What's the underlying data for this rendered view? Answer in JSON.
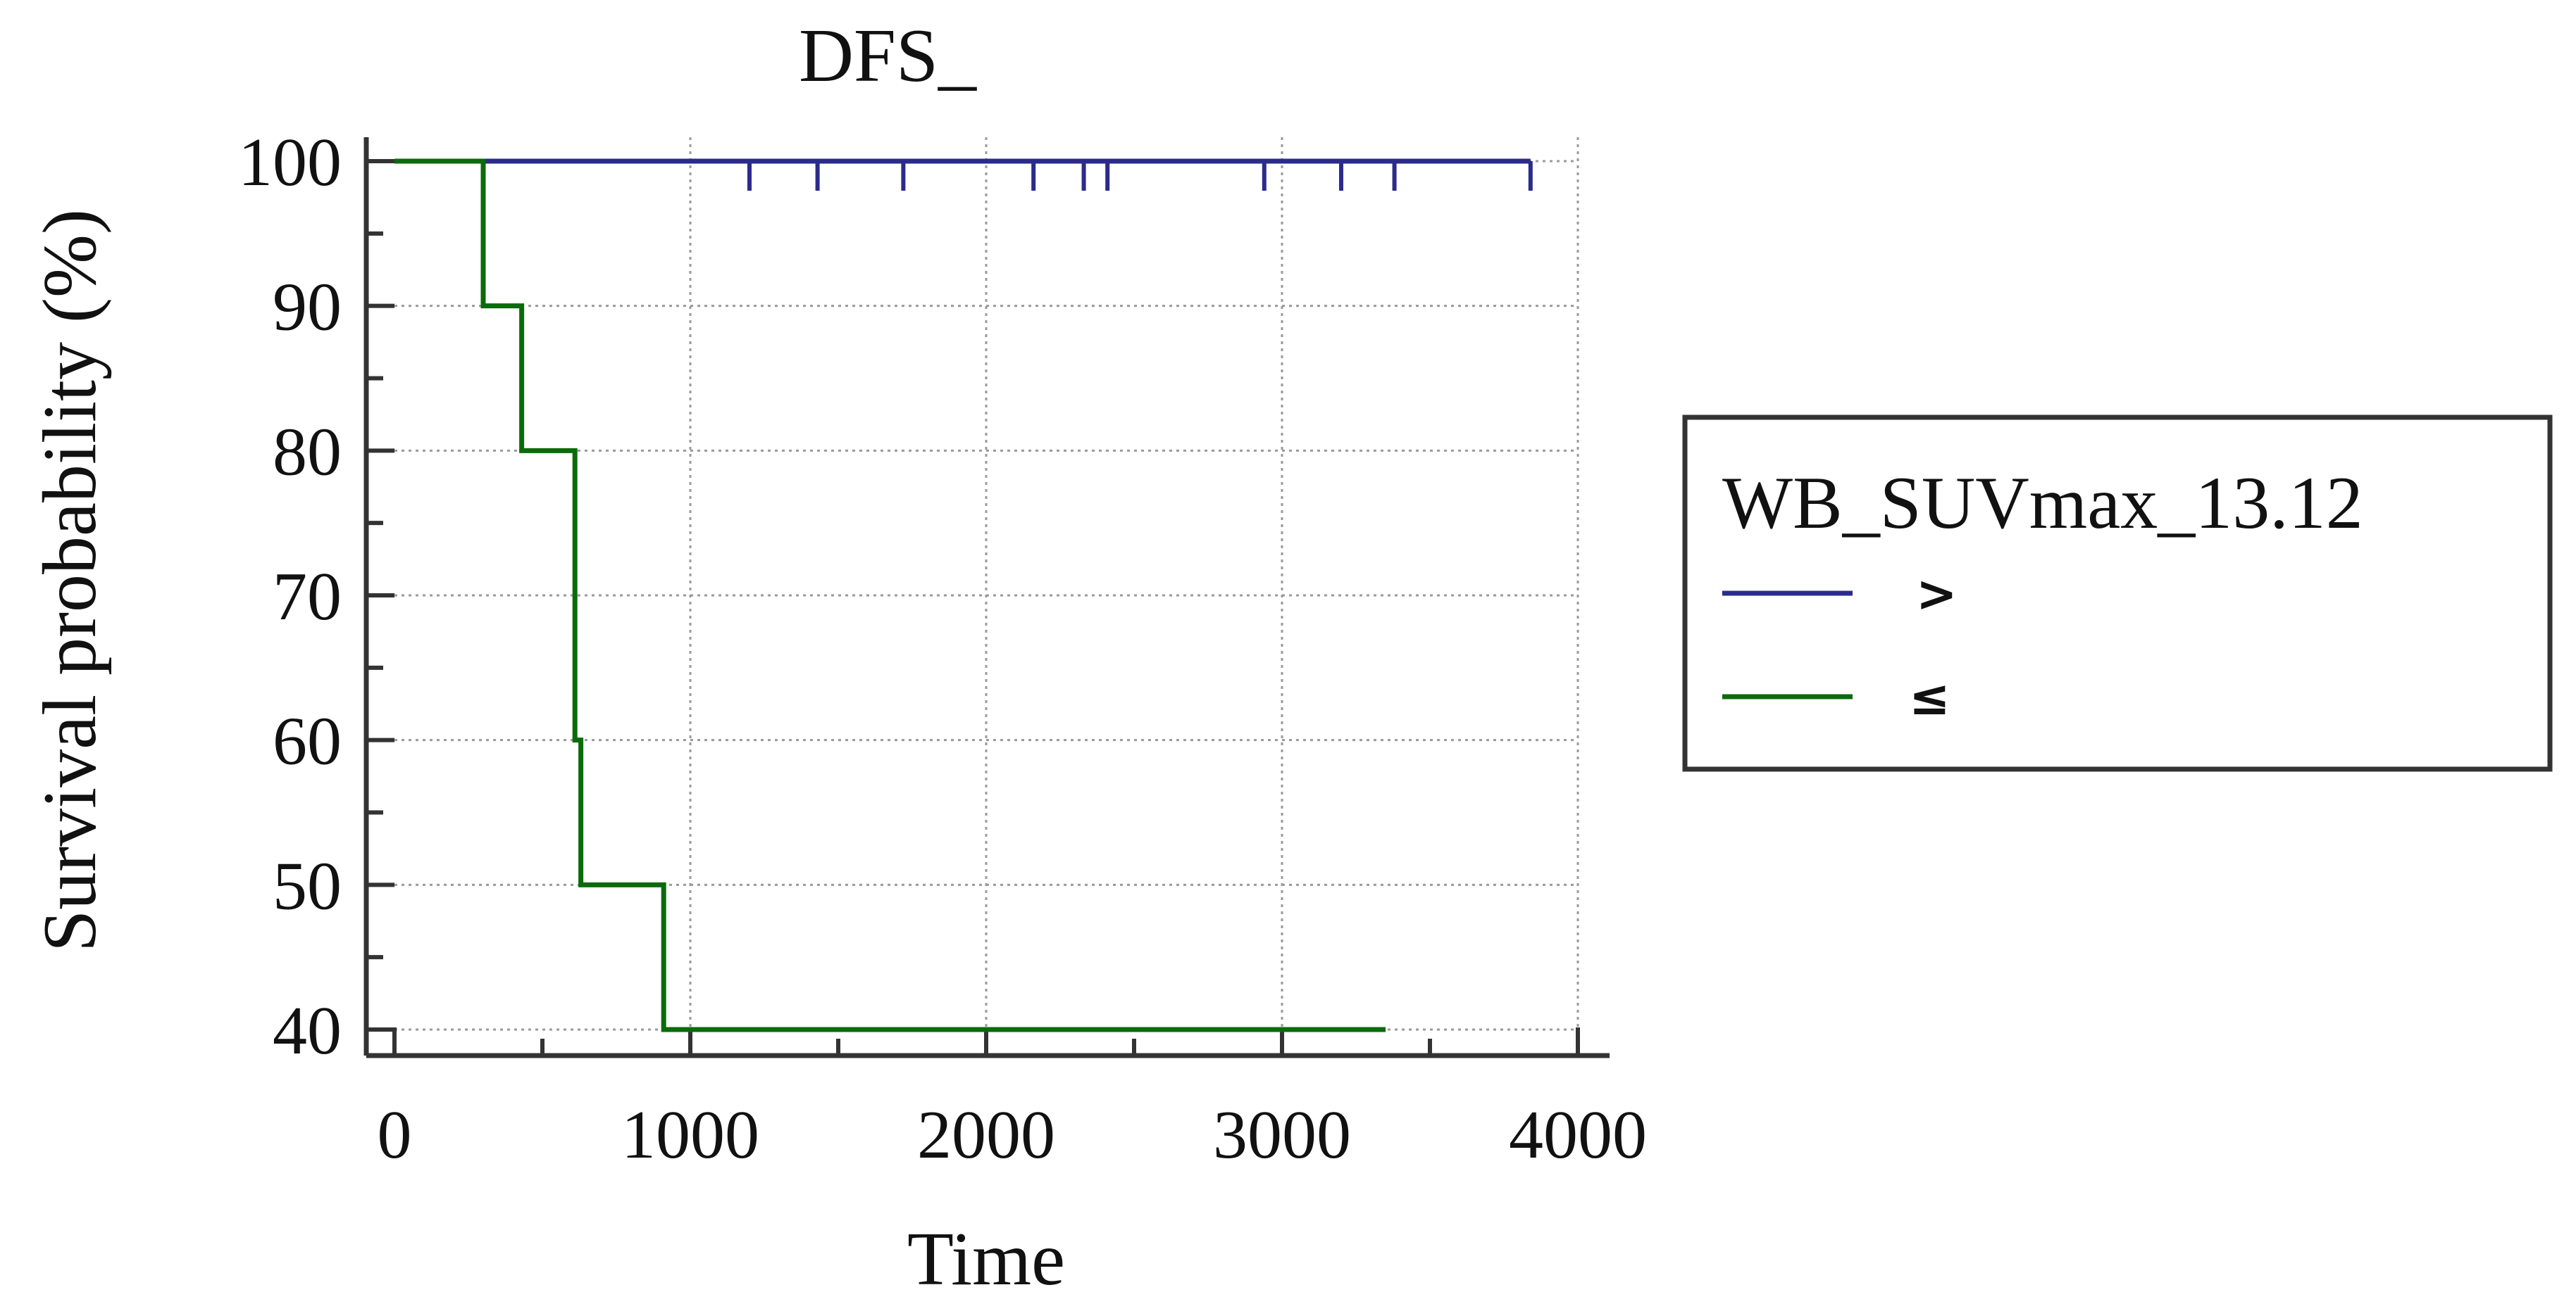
{
  "chart_data": {
    "type": "line",
    "subtype": "kaplan-meier",
    "title": "DFS_",
    "xlabel": "Time",
    "ylabel": "Survival probability (%)",
    "xlim": [
      0,
      4000
    ],
    "ylim": [
      40,
      100
    ],
    "xticks": [
      "0",
      "1000",
      "2000",
      "3000",
      "4000"
    ],
    "yticks": [
      "40",
      "50",
      "60",
      "70",
      "80",
      "90",
      "100"
    ],
    "grid": true,
    "legend": {
      "title": "WB_SUVmax_13.12",
      "placement": "right",
      "entries": [
        ">",
        "≤"
      ]
    },
    "series": [
      {
        "name": ">",
        "color": "#2b2b8c",
        "steps": [
          [
            0,
            100
          ],
          [
            3840,
            100
          ]
        ],
        "censored": [
          1200,
          1430,
          1720,
          2160,
          2330,
          2410,
          2940,
          3200,
          3380,
          3840
        ]
      },
      {
        "name": "≤",
        "color": "#0a6b0a",
        "steps": [
          [
            0,
            100
          ],
          [
            300,
            90
          ],
          [
            430,
            80
          ],
          [
            610,
            60
          ],
          [
            630,
            50
          ],
          [
            910,
            40
          ],
          [
            3350,
            40
          ]
        ],
        "censored": []
      }
    ]
  }
}
